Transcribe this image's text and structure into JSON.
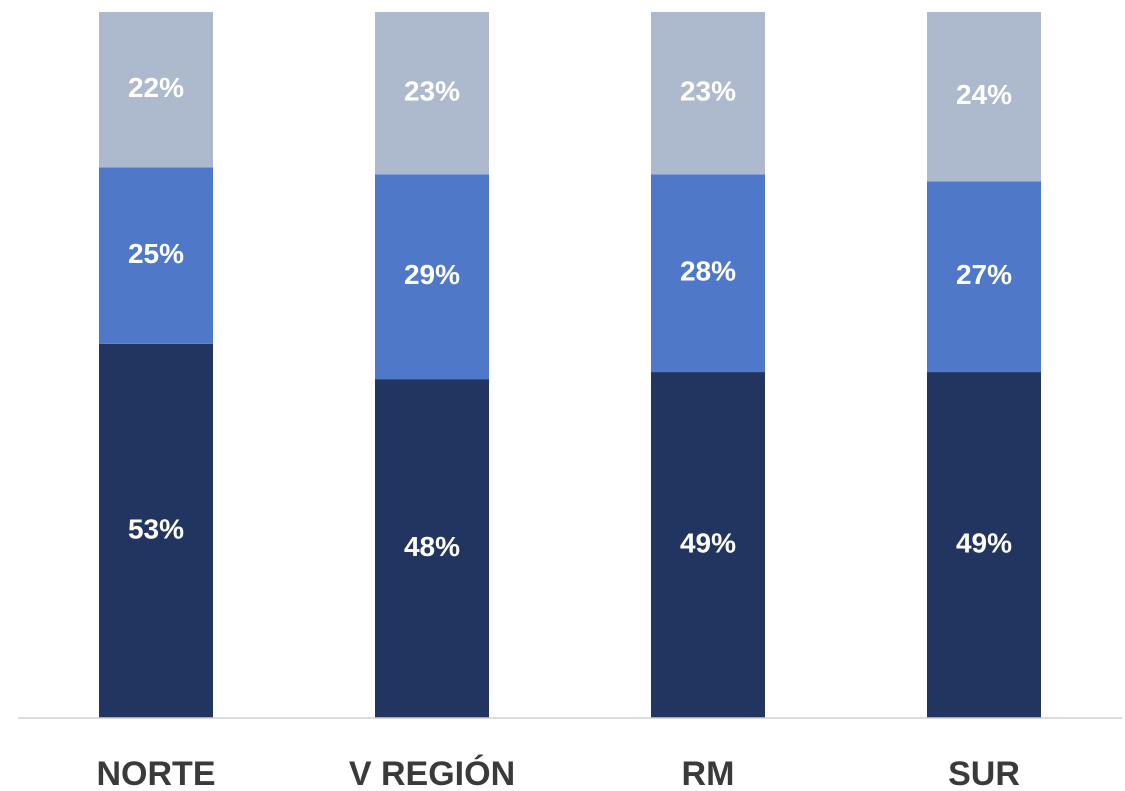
{
  "chart_data": {
    "type": "stacked_bar",
    "categories": [
      "NORTE",
      "V REGIÓN",
      "RM",
      "SUR"
    ],
    "series": [
      {
        "color": "#213560",
        "values": [
          53,
          48,
          49,
          49
        ],
        "value_labels": [
          "53%",
          "48%",
          "49%",
          "49%"
        ]
      },
      {
        "color": "#4f79c8",
        "values": [
          25,
          29,
          28,
          27
        ],
        "value_labels": [
          "25%",
          "29%",
          "28%",
          "27%"
        ]
      },
      {
        "color": "#adb9cc",
        "values": [
          22,
          23,
          23,
          24
        ],
        "value_labels": [
          "22%",
          "23%",
          "23%",
          "24%"
        ]
      }
    ],
    "ylim": [
      0,
      100
    ]
  }
}
